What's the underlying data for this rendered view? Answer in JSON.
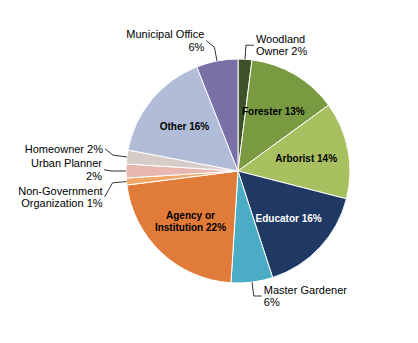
{
  "chart_data": {
    "type": "pie",
    "categories": [
      "Woodland\nOwner 2%",
      "Forester 13%",
      "Arborist 14%",
      "Educator 16%",
      "Master Gardener\n6%",
      "Agency or\nInstitution 22%",
      "Non-Government\nOrganization 1%",
      "Urban Planner\n2%",
      "Homeowner 2%",
      "Other 16%",
      "Municipal Office\n6%"
    ],
    "values": [
      2,
      13,
      14,
      16,
      6,
      22,
      1,
      2,
      2,
      16,
      6
    ],
    "colors": [
      "#3d5229",
      "#7a9a42",
      "#a8c060",
      "#1f3864",
      "#4bacc6",
      "#e07b39",
      "#f0a868",
      "#e8b8b0",
      "#d8ccc8",
      "#b0bcd8",
      "#7b6fa8"
    ]
  }
}
